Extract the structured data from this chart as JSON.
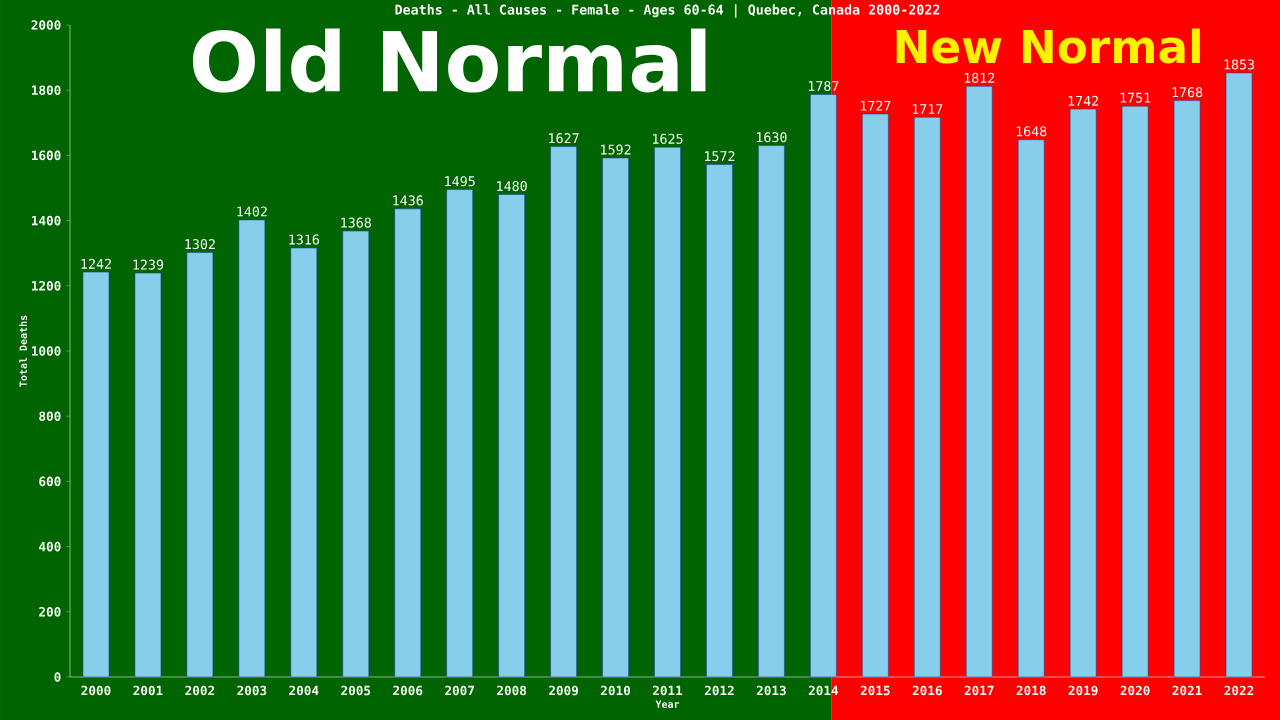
{
  "chart_data": {
    "type": "bar",
    "title": "Deaths - All Causes - Female - Ages 60-64 | Quebec, Canada 2000-2022",
    "xlabel": "Year",
    "ylabel": "Total Deaths",
    "x": [
      2000,
      2001,
      2002,
      2003,
      2004,
      2005,
      2006,
      2007,
      2008,
      2009,
      2010,
      2011,
      2012,
      2013,
      2014,
      2015,
      2016,
      2017,
      2018,
      2019,
      2020,
      2021,
      2022
    ],
    "values": [
      1242,
      1239,
      1302,
      1402,
      1316,
      1368,
      1436,
      1495,
      1480,
      1627,
      1592,
      1625,
      1572,
      1630,
      1787,
      1727,
      1717,
      1812,
      1648,
      1742,
      1751,
      1768,
      1853
    ],
    "color": "#87ceeb",
    "data_labels": true,
    "xlim": [
      1999.5,
      2022.5
    ],
    "xticks": [
      2000,
      2001,
      2002,
      2003,
      2004,
      2005,
      2006,
      2007,
      2008,
      2009,
      2010,
      2011,
      2012,
      2013,
      2014,
      2015,
      2016,
      2017,
      2018,
      2019,
      2020,
      2021,
      2022
    ],
    "ylim": [
      0,
      2000
    ],
    "yticks": [
      0,
      200,
      400,
      600,
      800,
      1000,
      1200,
      1400,
      1600,
      1800,
      2000
    ],
    "bands": [
      {
        "axis": "x",
        "from": 1999.5,
        "to": 2014.15,
        "label": "Old Normal",
        "color": "#006400"
      },
      {
        "axis": "x",
        "from": 2014.15,
        "to": 2022.5,
        "label": "New Normal",
        "color": "#ff0000"
      }
    ],
    "grid": false,
    "legend": false
  }
}
